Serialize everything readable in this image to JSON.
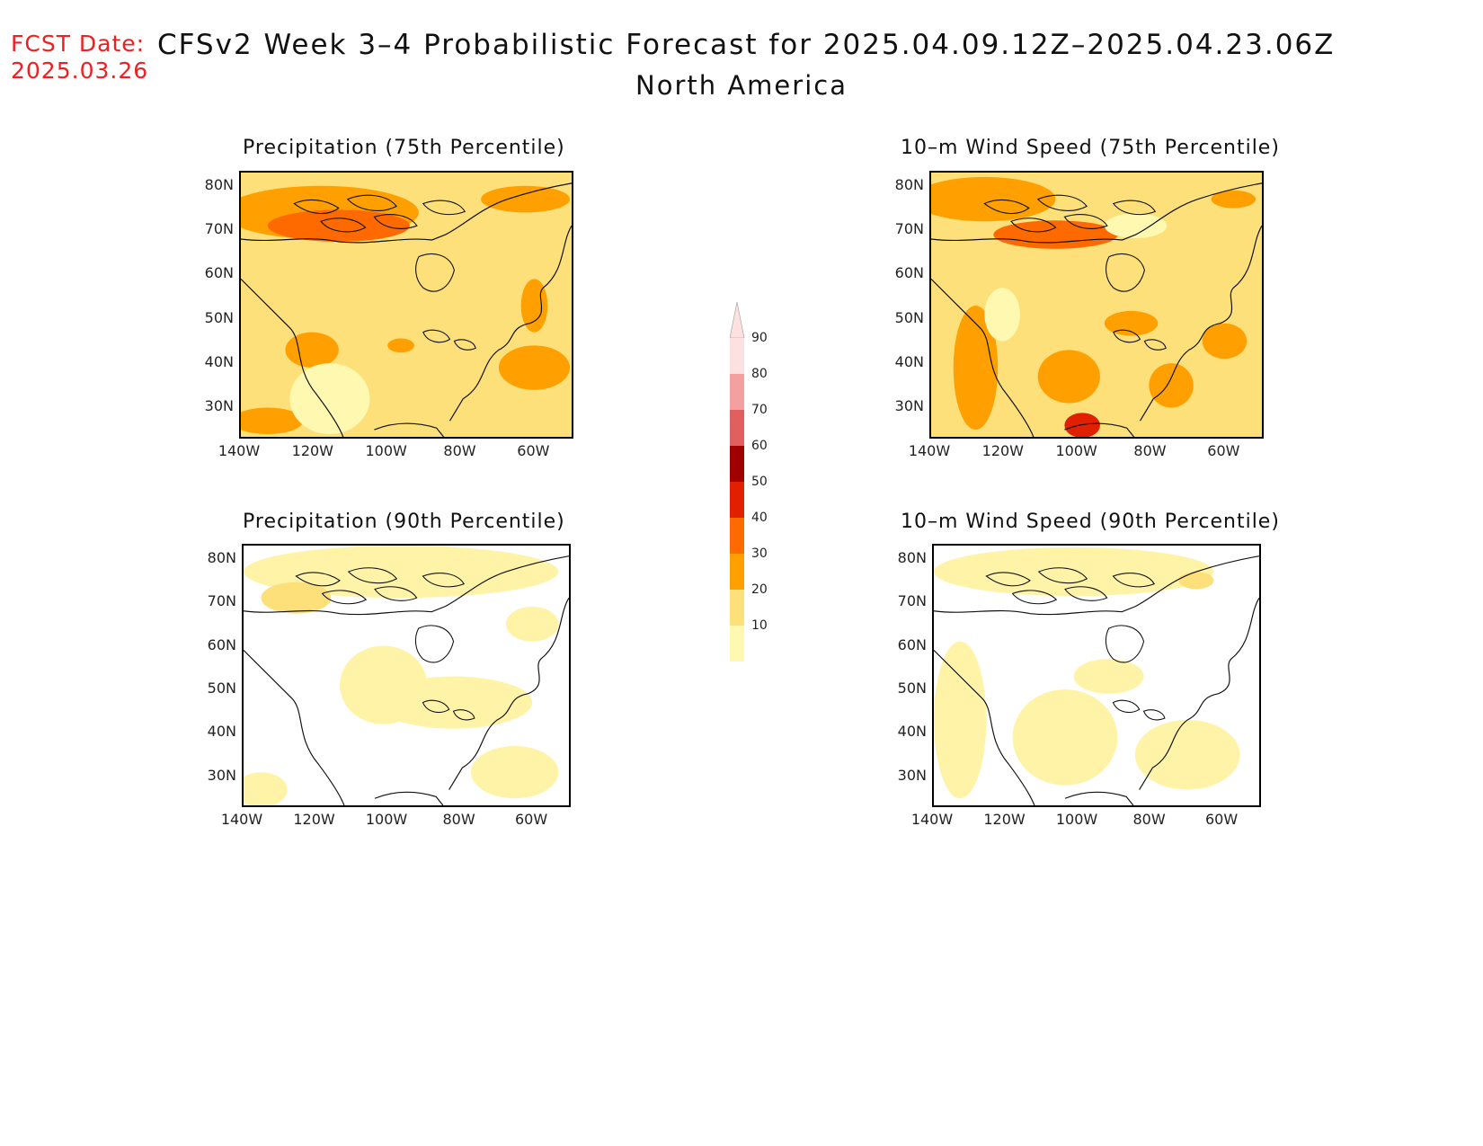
{
  "header": {
    "fcst_label": "FCST Date:",
    "fcst_date": "2025.03.26",
    "title": "CFSv2 Week 3–4 Probabilistic Forecast for 2025.04.09.12Z–2025.04.23.06Z",
    "region": "North America"
  },
  "axes": {
    "lat_ticks": [
      "80N",
      "70N",
      "60N",
      "50N",
      "40N",
      "30N"
    ],
    "lon_ticks": [
      "140W",
      "120W",
      "100W",
      "80W",
      "60W"
    ]
  },
  "panels": [
    {
      "id": "precip75",
      "title": "Precipitation (75th Percentile)",
      "base_color": "#fde07a",
      "level": "high"
    },
    {
      "id": "wind75",
      "title": "10–m Wind Speed (75th Percentile)",
      "base_color": "#fde07a",
      "level": "high"
    },
    {
      "id": "precip90",
      "title": "Precipitation (90th Percentile)",
      "base_color": "#ffffff",
      "level": "low"
    },
    {
      "id": "wind90",
      "title": "10–m Wind Speed (90th Percentile)",
      "base_color": "#ffffff",
      "level": "low"
    }
  ],
  "colorbar": {
    "labels": [
      "90",
      "80",
      "70",
      "60",
      "50",
      "40",
      "30",
      "20",
      "10"
    ],
    "colors": [
      "#fde0e0",
      "#f4a0a0",
      "#e06060",
      "#a00000",
      "#e02000",
      "#ff6a00",
      "#ffa000",
      "#fde07a",
      "#fff8b0"
    ]
  }
}
